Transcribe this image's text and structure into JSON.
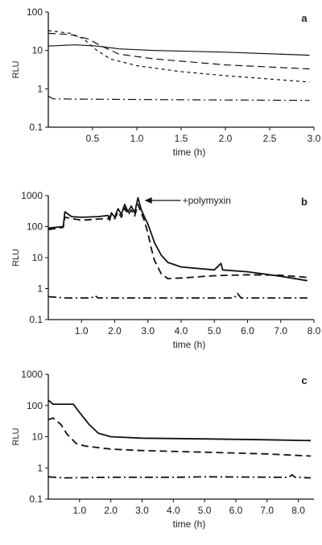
{
  "chart_data": [
    {
      "type": "line",
      "panel_label": "a",
      "xlabel": "time (h)",
      "ylabel": "RLU",
      "log_y": true,
      "xlim": [
        0,
        3.0
      ],
      "ylim": [
        0.1,
        100
      ],
      "x_ticks": [
        "0.5",
        "1.0",
        "1.5",
        "2.0",
        "2.5",
        "3.0"
      ],
      "y_ticks": [
        "0.1",
        "1",
        "10",
        "100"
      ],
      "annotation": "",
      "series": [
        {
          "style": "solid",
          "points": [
            [
              0.0,
              13
            ],
            [
              0.3,
              14
            ],
            [
              0.55,
              13
            ],
            [
              0.8,
              11
            ],
            [
              1.2,
              10
            ],
            [
              2.0,
              9
            ],
            [
              2.95,
              7.5
            ]
          ]
        },
        {
          "style": "dashed",
          "points": [
            [
              0.0,
              28
            ],
            [
              0.25,
              26
            ],
            [
              0.45,
              20
            ],
            [
              0.6,
              13
            ],
            [
              0.8,
              8
            ],
            [
              1.2,
              6
            ],
            [
              2.0,
              4.2
            ],
            [
              2.95,
              3.3
            ]
          ]
        },
        {
          "style": "short-dash",
          "points": [
            [
              0.0,
              33
            ],
            [
              0.25,
              28
            ],
            [
              0.4,
              20
            ],
            [
              0.55,
              10
            ],
            [
              0.7,
              6
            ],
            [
              1.0,
              4
            ],
            [
              1.5,
              2.8
            ],
            [
              2.0,
              2.2
            ],
            [
              2.95,
              1.5
            ]
          ]
        },
        {
          "style": "dash-dot",
          "points": [
            [
              0.0,
              0.65
            ],
            [
              0.05,
              0.55
            ],
            [
              0.3,
              0.54
            ],
            [
              1.5,
              0.52
            ],
            [
              2.95,
              0.5
            ]
          ]
        }
      ]
    },
    {
      "type": "line",
      "panel_label": "b",
      "xlabel": "time (h)",
      "ylabel": "RLU",
      "log_y": true,
      "xlim": [
        0,
        8.0
      ],
      "ylim": [
        0.1,
        1000
      ],
      "x_ticks": [
        "1.0",
        "2.0",
        "3.0",
        "4.0",
        "5.0",
        "6.0",
        "7.0",
        "8.0"
      ],
      "y_ticks": [
        "0.1",
        "1",
        "10",
        "100",
        "1000"
      ],
      "annotation": "+polymyxin",
      "annotation_x": 2.9,
      "annotation_y": 700,
      "series": [
        {
          "style": "solid",
          "points": [
            [
              0.0,
              90
            ],
            [
              0.45,
              100
            ],
            [
              0.5,
              300
            ],
            [
              0.7,
              210
            ],
            [
              1.0,
              200
            ],
            [
              1.5,
              210
            ],
            [
              1.8,
              230
            ],
            [
              1.85,
              160
            ],
            [
              1.9,
              280
            ],
            [
              2.0,
              200
            ],
            [
              2.1,
              380
            ],
            [
              2.2,
              250
            ],
            [
              2.3,
              520
            ],
            [
              2.4,
              300
            ],
            [
              2.5,
              460
            ],
            [
              2.6,
              280
            ],
            [
              2.7,
              850
            ],
            [
              2.8,
              350
            ],
            [
              2.9,
              200
            ],
            [
              3.0,
              120
            ],
            [
              3.1,
              60
            ],
            [
              3.2,
              30
            ],
            [
              3.4,
              12
            ],
            [
              3.6,
              7
            ],
            [
              4.0,
              5
            ],
            [
              5.0,
              4
            ],
            [
              5.2,
              6.5
            ],
            [
              5.25,
              4
            ],
            [
              6.0,
              3.5
            ],
            [
              7.0,
              2.5
            ],
            [
              7.8,
              1.8
            ]
          ]
        },
        {
          "style": "dashed",
          "points": [
            [
              0.0,
              80
            ],
            [
              0.45,
              95
            ],
            [
              0.5,
              200
            ],
            [
              1.0,
              160
            ],
            [
              1.5,
              175
            ],
            [
              1.8,
              180
            ],
            [
              1.9,
              250
            ],
            [
              2.0,
              180
            ],
            [
              2.1,
              300
            ],
            [
              2.2,
              200
            ],
            [
              2.3,
              400
            ],
            [
              2.4,
              240
            ],
            [
              2.5,
              340
            ],
            [
              2.6,
              220
            ],
            [
              2.7,
              520
            ],
            [
              2.8,
              280
            ],
            [
              2.9,
              150
            ],
            [
              3.0,
              60
            ],
            [
              3.1,
              20
            ],
            [
              3.2,
              8
            ],
            [
              3.4,
              3
            ],
            [
              3.6,
              2.1
            ],
            [
              4.0,
              2.2
            ],
            [
              5.0,
              2.6
            ],
            [
              6.0,
              2.8
            ],
            [
              7.0,
              2.7
            ],
            [
              7.8,
              2.3
            ]
          ]
        },
        {
          "style": "dash-dot",
          "points": [
            [
              0.0,
              0.55
            ],
            [
              0.5,
              0.5
            ],
            [
              1.3,
              0.5
            ],
            [
              1.4,
              0.6
            ],
            [
              1.5,
              0.5
            ],
            [
              3.0,
              0.5
            ],
            [
              5.6,
              0.5
            ],
            [
              5.7,
              0.7
            ],
            [
              5.8,
              0.5
            ],
            [
              7.8,
              0.5
            ]
          ]
        }
      ]
    },
    {
      "type": "line",
      "panel_label": "c",
      "xlabel": "time (h)",
      "ylabel": "RLU",
      "log_y": true,
      "xlim": [
        0,
        8.5
      ],
      "ylim": [
        0.1,
        1000
      ],
      "x_ticks": [
        "1.0",
        "2.0",
        "3.0",
        "4.0",
        "5.0",
        "6.0",
        "7.0",
        "8.0"
      ],
      "y_ticks": [
        "0.1",
        "1",
        "10",
        "100",
        "1000"
      ],
      "annotation": "",
      "series": [
        {
          "style": "solid",
          "points": [
            [
              0.0,
              150
            ],
            [
              0.15,
              110
            ],
            [
              0.8,
              110
            ],
            [
              1.0,
              60
            ],
            [
              1.3,
              25
            ],
            [
              1.6,
              13
            ],
            [
              2.0,
              10
            ],
            [
              3.0,
              9
            ],
            [
              5.0,
              8.5
            ],
            [
              7.0,
              8
            ],
            [
              8.4,
              7.5
            ]
          ]
        },
        {
          "style": "dashed",
          "points": [
            [
              0.0,
              35
            ],
            [
              0.15,
              40
            ],
            [
              0.4,
              25
            ],
            [
              0.6,
              12
            ],
            [
              0.9,
              6
            ],
            [
              1.2,
              5
            ],
            [
              2.0,
              4
            ],
            [
              3.0,
              3.6
            ],
            [
              5.0,
              3.2
            ],
            [
              7.0,
              2.8
            ],
            [
              8.4,
              2.4
            ]
          ]
        },
        {
          "style": "dash-dot",
          "points": [
            [
              0.0,
              0.52
            ],
            [
              0.5,
              0.48
            ],
            [
              2.0,
              0.5
            ],
            [
              4.0,
              0.5
            ],
            [
              5.0,
              0.52
            ],
            [
              7.7,
              0.5
            ],
            [
              7.8,
              0.6
            ],
            [
              7.9,
              0.5
            ],
            [
              8.4,
              0.48
            ]
          ]
        }
      ]
    }
  ]
}
